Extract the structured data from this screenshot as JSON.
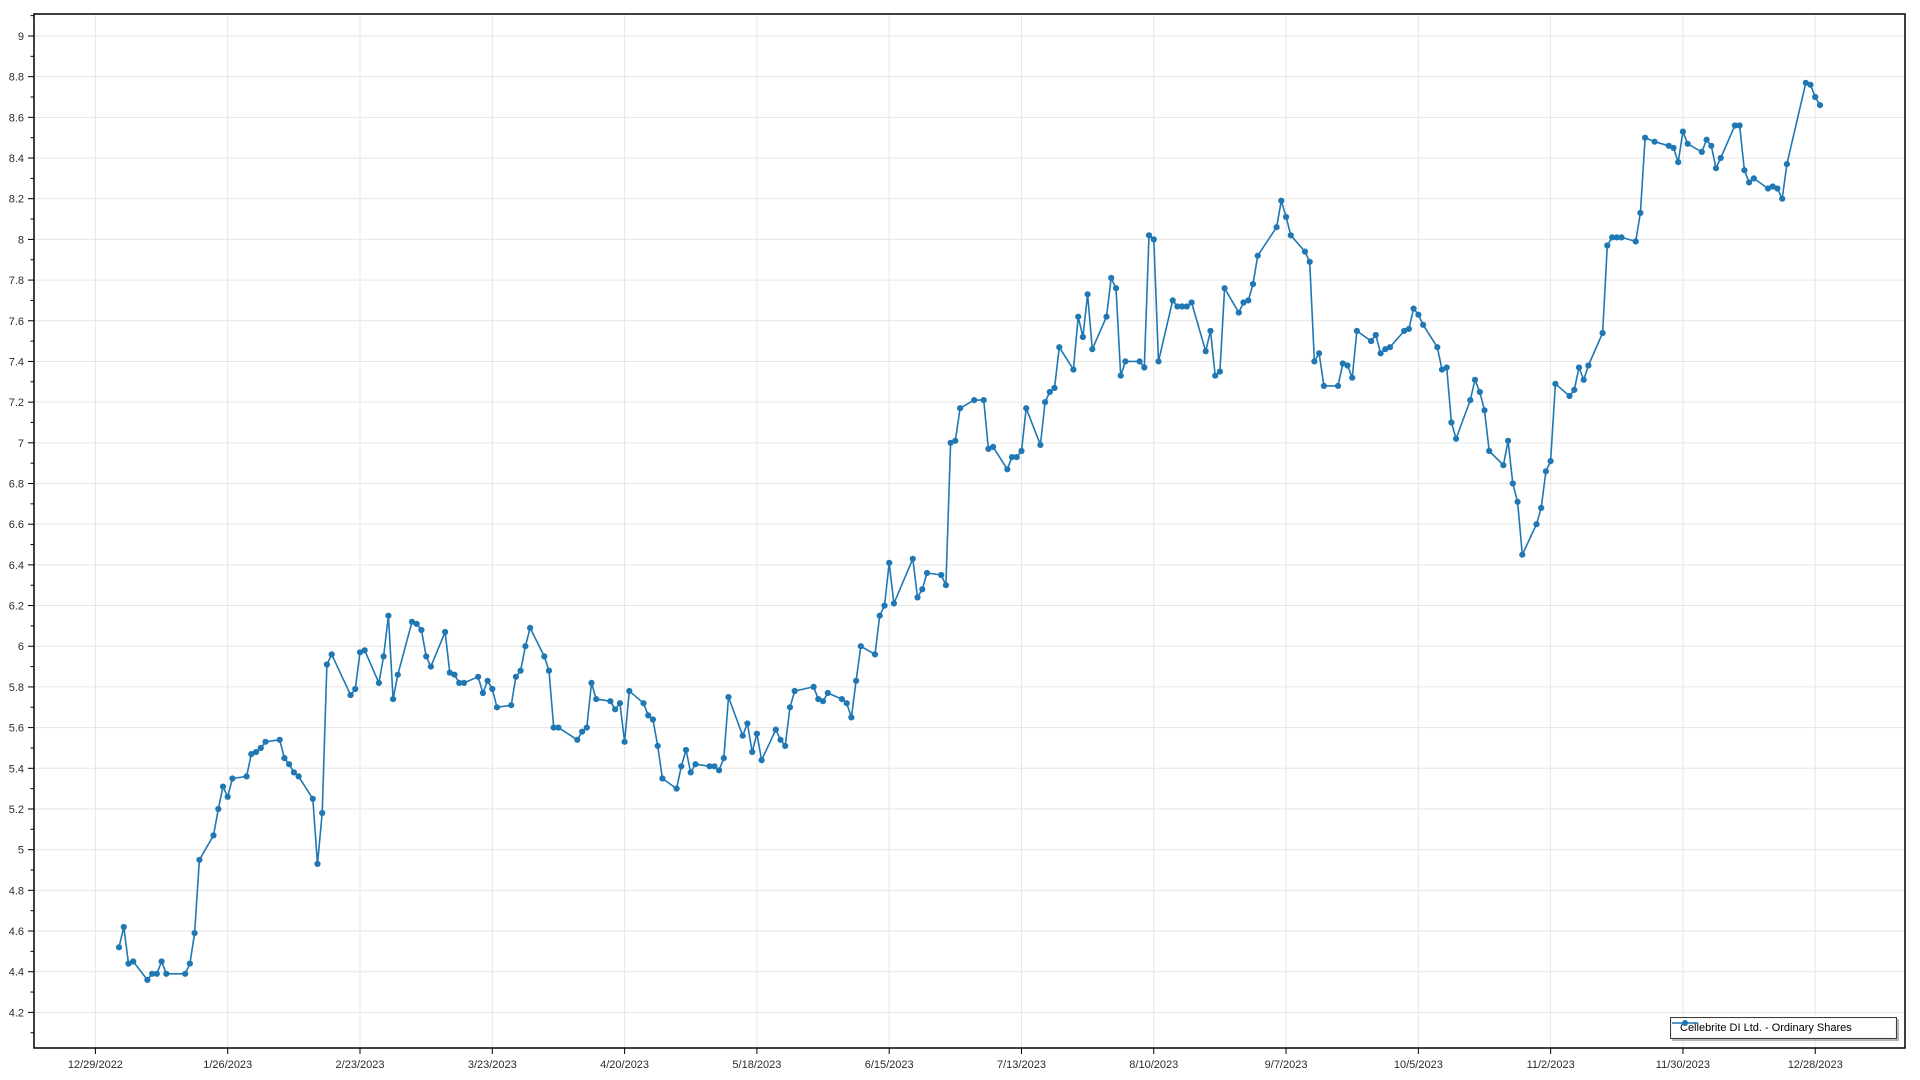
{
  "page": {
    "background_color": "#ffffff"
  },
  "legend": {
    "label": "Cellebrite DI Ltd. - Ordinary Shares"
  },
  "chart_data": {
    "type": "line",
    "title": "",
    "xlabel": "",
    "ylabel": "",
    "grid": true,
    "legend_position": "bottom-right",
    "series_name": "Cellebrite DI Ltd. - Ordinary Shares",
    "line_color": "#1f77b4",
    "marker": "circle",
    "grid_color": "#e6e6e6",
    "axis_color": "#000000",
    "tick_label_color": "#2b2b2b",
    "x_range": [
      "12/16/2022",
      "1/16/2024"
    ],
    "y_range": [
      4.025,
      9.108
    ],
    "x_ticks": [
      "12/29/2022",
      "1/26/2023",
      "2/23/2023",
      "3/23/2023",
      "4/20/2023",
      "5/18/2023",
      "6/15/2023",
      "7/13/2023",
      "8/10/2023",
      "9/7/2023",
      "10/5/2023",
      "11/2/2023",
      "11/30/2023",
      "12/28/2023"
    ],
    "y_ticks": [
      [
        9,
        "9"
      ],
      [
        8.8,
        "8.8"
      ],
      [
        8.6,
        "8.6"
      ],
      [
        8.4,
        "8.4"
      ],
      [
        8.2,
        "8.2"
      ],
      [
        8,
        "8"
      ],
      [
        7.8,
        "7.8"
      ],
      [
        7.6,
        "7.6"
      ],
      [
        7.4,
        "7.4"
      ],
      [
        7.2,
        "7.2"
      ],
      [
        7,
        "7"
      ],
      [
        6.8,
        "6.8"
      ],
      [
        6.6,
        "6.6"
      ],
      [
        6.4,
        "6.4"
      ],
      [
        6.2,
        "6.2"
      ],
      [
        6,
        "6"
      ],
      [
        5.8,
        "5.8"
      ],
      [
        5.6,
        "5.6"
      ],
      [
        5.4,
        "5.4"
      ],
      [
        5.2,
        "5.2"
      ],
      [
        5,
        "5"
      ],
      [
        4.8,
        "4.8"
      ],
      [
        4.6,
        "4.6"
      ],
      [
        4.4,
        "4.4"
      ],
      [
        4.2,
        "4.2"
      ]
    ],
    "points": [
      [
        "1/3/2023",
        4.52
      ],
      [
        "1/4/2023",
        4.62
      ],
      [
        "1/5/2023",
        4.44
      ],
      [
        "1/6/2023",
        4.45
      ],
      [
        "1/9/2023",
        4.36
      ],
      [
        "1/10/2023",
        4.39
      ],
      [
        "1/11/2023",
        4.39
      ],
      [
        "1/12/2023",
        4.45
      ],
      [
        "1/13/2023",
        4.39
      ],
      [
        "1/17/2023",
        4.39
      ],
      [
        "1/18/2023",
        4.44
      ],
      [
        "1/19/2023",
        4.59
      ],
      [
        "1/20/2023",
        4.95
      ],
      [
        "1/23/2023",
        5.07
      ],
      [
        "1/24/2023",
        5.2
      ],
      [
        "1/25/2023",
        5.31
      ],
      [
        "1/26/2023",
        5.26
      ],
      [
        "1/27/2023",
        5.35
      ],
      [
        "1/30/2023",
        5.36
      ],
      [
        "1/31/2023",
        5.47
      ],
      [
        "2/1/2023",
        5.48
      ],
      [
        "2/2/2023",
        5.5
      ],
      [
        "2/3/2023",
        5.53
      ],
      [
        "2/6/2023",
        5.54
      ],
      [
        "2/7/2023",
        5.45
      ],
      [
        "2/8/2023",
        5.42
      ],
      [
        "2/9/2023",
        5.38
      ],
      [
        "2/10/2023",
        5.36
      ],
      [
        "2/13/2023",
        5.25
      ],
      [
        "2/14/2023",
        4.93
      ],
      [
        "2/15/2023",
        5.18
      ],
      [
        "2/16/2023",
        5.91
      ],
      [
        "2/17/2023",
        5.96
      ],
      [
        "2/21/2023",
        5.76
      ],
      [
        "2/22/2023",
        5.79
      ],
      [
        "2/23/2023",
        5.97
      ],
      [
        "2/24/2023",
        5.98
      ],
      [
        "2/27/2023",
        5.82
      ],
      [
        "2/28/2023",
        5.95
      ],
      [
        "3/1/2023",
        6.15
      ],
      [
        "3/2/2023",
        5.74
      ],
      [
        "3/3/2023",
        5.86
      ],
      [
        "3/6/2023",
        6.12
      ],
      [
        "3/7/2023",
        6.11
      ],
      [
        "3/8/2023",
        6.08
      ],
      [
        "3/9/2023",
        5.95
      ],
      [
        "3/10/2023",
        5.9
      ],
      [
        "3/13/2023",
        6.07
      ],
      [
        "3/14/2023",
        5.87
      ],
      [
        "3/15/2023",
        5.86
      ],
      [
        "3/16/2023",
        5.82
      ],
      [
        "3/17/2023",
        5.82
      ],
      [
        "3/20/2023",
        5.85
      ],
      [
        "3/21/2023",
        5.77
      ],
      [
        "3/22/2023",
        5.83
      ],
      [
        "3/23/2023",
        5.79
      ],
      [
        "3/24/2023",
        5.7
      ],
      [
        "3/27/2023",
        5.71
      ],
      [
        "3/28/2023",
        5.85
      ],
      [
        "3/29/2023",
        5.88
      ],
      [
        "3/30/2023",
        6.0
      ],
      [
        "3/31/2023",
        6.09
      ],
      [
        "4/3/2023",
        5.95
      ],
      [
        "4/4/2023",
        5.88
      ],
      [
        "4/5/2023",
        5.6
      ],
      [
        "4/6/2023",
        5.6
      ],
      [
        "4/10/2023",
        5.54
      ],
      [
        "4/11/2023",
        5.58
      ],
      [
        "4/12/2023",
        5.6
      ],
      [
        "4/13/2023",
        5.82
      ],
      [
        "4/14/2023",
        5.74
      ],
      [
        "4/17/2023",
        5.73
      ],
      [
        "4/18/2023",
        5.69
      ],
      [
        "4/19/2023",
        5.72
      ],
      [
        "4/20/2023",
        5.53
      ],
      [
        "4/21/2023",
        5.78
      ],
      [
        "4/24/2023",
        5.72
      ],
      [
        "4/25/2023",
        5.66
      ],
      [
        "4/26/2023",
        5.64
      ],
      [
        "4/27/2023",
        5.51
      ],
      [
        "4/28/2023",
        5.35
      ],
      [
        "5/1/2023",
        5.3
      ],
      [
        "5/2/2023",
        5.41
      ],
      [
        "5/3/2023",
        5.49
      ],
      [
        "5/4/2023",
        5.38
      ],
      [
        "5/5/2023",
        5.42
      ],
      [
        "5/8/2023",
        5.41
      ],
      [
        "5/9/2023",
        5.41
      ],
      [
        "5/10/2023",
        5.39
      ],
      [
        "5/11/2023",
        5.45
      ],
      [
        "5/12/2023",
        5.75
      ],
      [
        "5/15/2023",
        5.56
      ],
      [
        "5/16/2023",
        5.62
      ],
      [
        "5/17/2023",
        5.48
      ],
      [
        "5/18/2023",
        5.57
      ],
      [
        "5/19/2023",
        5.44
      ],
      [
        "5/22/2023",
        5.59
      ],
      [
        "5/23/2023",
        5.54
      ],
      [
        "5/24/2023",
        5.51
      ],
      [
        "5/25/2023",
        5.7
      ],
      [
        "5/26/2023",
        5.78
      ],
      [
        "5/30/2023",
        5.8
      ],
      [
        "5/31/2023",
        5.74
      ],
      [
        "6/1/2023",
        5.73
      ],
      [
        "6/2/2023",
        5.77
      ],
      [
        "6/5/2023",
        5.74
      ],
      [
        "6/6/2023",
        5.72
      ],
      [
        "6/7/2023",
        5.65
      ],
      [
        "6/8/2023",
        5.83
      ],
      [
        "6/9/2023",
        6.0
      ],
      [
        "6/12/2023",
        5.96
      ],
      [
        "6/13/2023",
        6.15
      ],
      [
        "6/14/2023",
        6.2
      ],
      [
        "6/15/2023",
        6.41
      ],
      [
        "6/16/2023",
        6.21
      ],
      [
        "6/20/2023",
        6.43
      ],
      [
        "6/21/2023",
        6.24
      ],
      [
        "6/22/2023",
        6.28
      ],
      [
        "6/23/2023",
        6.36
      ],
      [
        "6/26/2023",
        6.35
      ],
      [
        "6/27/2023",
        6.3
      ],
      [
        "6/28/2023",
        7.0
      ],
      [
        "6/29/2023",
        7.01
      ],
      [
        "6/30/2023",
        7.17
      ],
      [
        "7/3/2023",
        7.21
      ],
      [
        "7/5/2023",
        7.21
      ],
      [
        "7/6/2023",
        6.97
      ],
      [
        "7/7/2023",
        6.98
      ],
      [
        "7/10/2023",
        6.87
      ],
      [
        "7/11/2023",
        6.93
      ],
      [
        "7/12/2023",
        6.93
      ],
      [
        "7/13/2023",
        6.96
      ],
      [
        "7/14/2023",
        7.17
      ],
      [
        "7/17/2023",
        6.99
      ],
      [
        "7/18/2023",
        7.2
      ],
      [
        "7/19/2023",
        7.25
      ],
      [
        "7/20/2023",
        7.27
      ],
      [
        "7/21/2023",
        7.47
      ],
      [
        "7/24/2023",
        7.36
      ],
      [
        "7/25/2023",
        7.62
      ],
      [
        "7/26/2023",
        7.52
      ],
      [
        "7/27/2023",
        7.73
      ],
      [
        "7/28/2023",
        7.46
      ],
      [
        "7/31/2023",
        7.62
      ],
      [
        "8/1/2023",
        7.81
      ],
      [
        "8/2/2023",
        7.76
      ],
      [
        "8/3/2023",
        7.33
      ],
      [
        "8/4/2023",
        7.4
      ],
      [
        "8/7/2023",
        7.4
      ],
      [
        "8/8/2023",
        7.37
      ],
      [
        "8/9/2023",
        8.02
      ],
      [
        "8/10/2023",
        8.0
      ],
      [
        "8/11/2023",
        7.4
      ],
      [
        "8/14/2023",
        7.7
      ],
      [
        "8/15/2023",
        7.67
      ],
      [
        "8/16/2023",
        7.67
      ],
      [
        "8/17/2023",
        7.67
      ],
      [
        "8/18/2023",
        7.69
      ],
      [
        "8/21/2023",
        7.45
      ],
      [
        "8/22/2023",
        7.55
      ],
      [
        "8/23/2023",
        7.33
      ],
      [
        "8/24/2023",
        7.35
      ],
      [
        "8/25/2023",
        7.76
      ],
      [
        "8/28/2023",
        7.64
      ],
      [
        "8/29/2023",
        7.69
      ],
      [
        "8/30/2023",
        7.7
      ],
      [
        "8/31/2023",
        7.78
      ],
      [
        "9/1/2023",
        7.92
      ],
      [
        "9/5/2023",
        8.06
      ],
      [
        "9/6/2023",
        8.19
      ],
      [
        "9/7/2023",
        8.11
      ],
      [
        "9/8/2023",
        8.02
      ],
      [
        "9/11/2023",
        7.94
      ],
      [
        "9/12/2023",
        7.89
      ],
      [
        "9/13/2023",
        7.4
      ],
      [
        "9/14/2023",
        7.44
      ],
      [
        "9/15/2023",
        7.28
      ],
      [
        "9/18/2023",
        7.28
      ],
      [
        "9/19/2023",
        7.39
      ],
      [
        "9/20/2023",
        7.38
      ],
      [
        "9/21/2023",
        7.32
      ],
      [
        "9/22/2023",
        7.55
      ],
      [
        "9/25/2023",
        7.5
      ],
      [
        "9/26/2023",
        7.53
      ],
      [
        "9/27/2023",
        7.44
      ],
      [
        "9/28/2023",
        7.46
      ],
      [
        "9/29/2023",
        7.47
      ],
      [
        "10/2/2023",
        7.55
      ],
      [
        "10/3/2023",
        7.56
      ],
      [
        "10/4/2023",
        7.66
      ],
      [
        "10/5/2023",
        7.63
      ],
      [
        "10/6/2023",
        7.58
      ],
      [
        "10/9/2023",
        7.47
      ],
      [
        "10/10/2023",
        7.36
      ],
      [
        "10/11/2023",
        7.37
      ],
      [
        "10/12/2023",
        7.1
      ],
      [
        "10/13/2023",
        7.02
      ],
      [
        "10/16/2023",
        7.21
      ],
      [
        "10/17/2023",
        7.31
      ],
      [
        "10/18/2023",
        7.25
      ],
      [
        "10/19/2023",
        7.16
      ],
      [
        "10/20/2023",
        6.96
      ],
      [
        "10/23/2023",
        6.89
      ],
      [
        "10/24/2023",
        7.01
      ],
      [
        "10/25/2023",
        6.8
      ],
      [
        "10/26/2023",
        6.71
      ],
      [
        "10/27/2023",
        6.45
      ],
      [
        "10/30/2023",
        6.6
      ],
      [
        "10/31/2023",
        6.68
      ],
      [
        "11/1/2023",
        6.86
      ],
      [
        "11/2/2023",
        6.91
      ],
      [
        "11/3/2023",
        7.29
      ],
      [
        "11/6/2023",
        7.23
      ],
      [
        "11/7/2023",
        7.26
      ],
      [
        "11/8/2023",
        7.37
      ],
      [
        "11/9/2023",
        7.31
      ],
      [
        "11/10/2023",
        7.38
      ],
      [
        "11/13/2023",
        7.54
      ],
      [
        "11/14/2023",
        7.97
      ],
      [
        "11/15/2023",
        8.01
      ],
      [
        "11/16/2023",
        8.01
      ],
      [
        "11/17/2023",
        8.01
      ],
      [
        "11/20/2023",
        7.99
      ],
      [
        "11/21/2023",
        8.13
      ],
      [
        "11/22/2023",
        8.5
      ],
      [
        "11/24/2023",
        8.48
      ],
      [
        "11/27/2023",
        8.46
      ],
      [
        "11/28/2023",
        8.45
      ],
      [
        "11/29/2023",
        8.38
      ],
      [
        "11/30/2023",
        8.53
      ],
      [
        "12/1/2023",
        8.47
      ],
      [
        "12/4/2023",
        8.43
      ],
      [
        "12/5/2023",
        8.49
      ],
      [
        "12/6/2023",
        8.46
      ],
      [
        "12/7/2023",
        8.35
      ],
      [
        "12/8/2023",
        8.4
      ],
      [
        "12/11/2023",
        8.56
      ],
      [
        "12/12/2023",
        8.56
      ],
      [
        "12/13/2023",
        8.34
      ],
      [
        "12/14/2023",
        8.28
      ],
      [
        "12/15/2023",
        8.3
      ],
      [
        "12/18/2023",
        8.25
      ],
      [
        "12/19/2023",
        8.26
      ],
      [
        "12/20/2023",
        8.25
      ],
      [
        "12/21/2023",
        8.2
      ],
      [
        "12/22/2023",
        8.37
      ],
      [
        "12/26/2023",
        8.77
      ],
      [
        "12/27/2023",
        8.76
      ],
      [
        "12/28/2023",
        8.7
      ],
      [
        "12/29/2023",
        8.66
      ]
    ]
  }
}
